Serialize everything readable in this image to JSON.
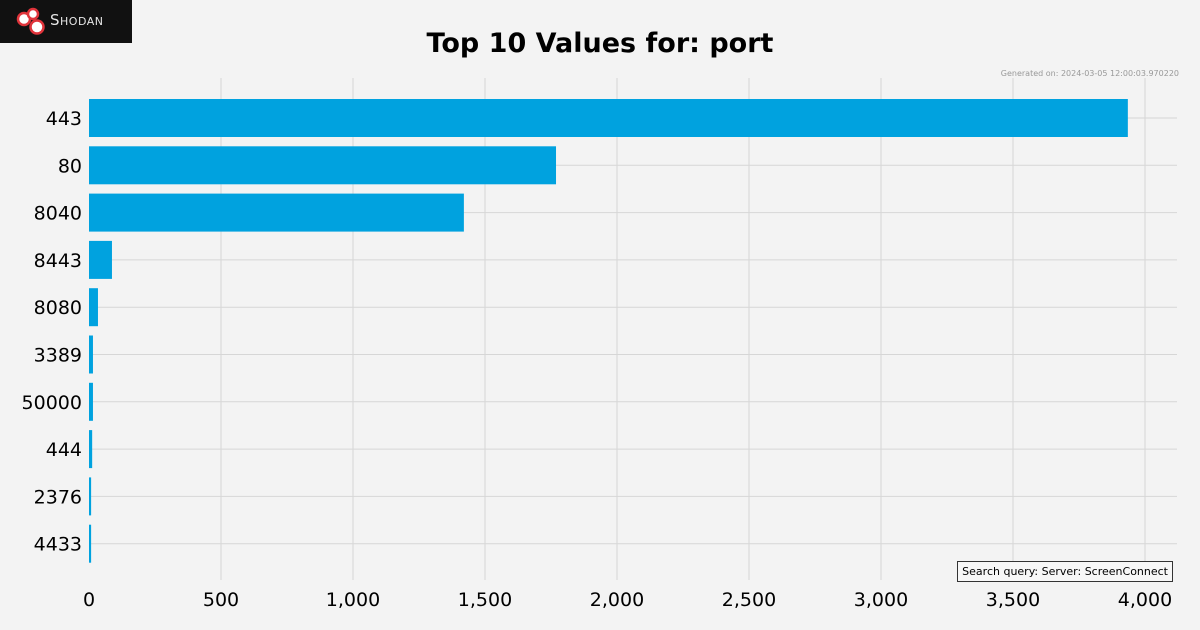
{
  "brand": {
    "name": "Shodan"
  },
  "title": "Top 10 Values for: port",
  "generated": "Generated on: 2024-03-05 12:00:03.970220",
  "query": "Search query: Server: ScreenConnect",
  "colors": {
    "bar": "#00a2df",
    "grid": "#d6d6d6",
    "background": "#f3f3f3"
  },
  "chart_data": {
    "type": "bar",
    "orientation": "horizontal",
    "title": "Top 10 Values for: port",
    "categories": [
      "443",
      "80",
      "8040",
      "8443",
      "8080",
      "3389",
      "50000",
      "444",
      "2376",
      "4433"
    ],
    "values": [
      3935,
      1769,
      1420,
      87,
      34,
      15,
      15,
      12,
      8,
      8
    ],
    "xlim": [
      0,
      4120
    ],
    "xticks": [
      0,
      500,
      1000,
      1500,
      2000,
      2500,
      3000,
      3500,
      4000
    ],
    "xtick_labels": [
      "0",
      "500",
      "1,000",
      "1,500",
      "2,000",
      "2,500",
      "3,000",
      "3,500",
      "4,000"
    ],
    "grid": true
  }
}
